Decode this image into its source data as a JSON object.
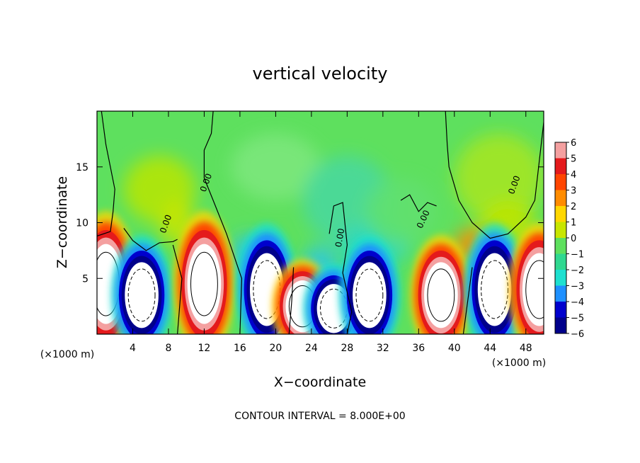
{
  "chart_data": {
    "type": "heatmap",
    "title": "vertical velocity",
    "xlabel": "X−coordinate",
    "ylabel": "Z−coordinate",
    "x_unit": "(×1000 m)",
    "y_unit": "(×1000 m)",
    "xlim": [
      0,
      50
    ],
    "ylim": [
      0,
      20
    ],
    "x_ticks": [
      4,
      8,
      12,
      16,
      20,
      24,
      28,
      32,
      36,
      40,
      44,
      48
    ],
    "y_ticks": [
      5,
      10,
      15
    ],
    "colorbar": {
      "ticks": [
        "6",
        "5",
        "4",
        "3",
        "2",
        "1",
        "0",
        "−1",
        "−2",
        "−3",
        "−4",
        "−5",
        "−6"
      ],
      "range": [
        -6,
        6
      ],
      "colors": [
        "#f4a0a0",
        "#e41a1c",
        "#ff4500",
        "#ff8c00",
        "#ffd700",
        "#c8e600",
        "#5ee05e",
        "#30d890",
        "#1ee0d0",
        "#1e90ff",
        "#0000cd",
        "#00008b",
        "#6a0dad"
      ]
    },
    "contour_label": "0.00",
    "footer": "CONTOUR INTERVAL = 8.000E+00",
    "cells": [
      {
        "x": 1,
        "z": 4.5,
        "w": 6
      },
      {
        "x": 5,
        "z": 3.5,
        "w": -7
      },
      {
        "x": 12,
        "z": 4.5,
        "w": 7
      },
      {
        "x": 19,
        "z": 4,
        "w": -7
      },
      {
        "x": 23,
        "z": 2.5,
        "w": 5
      },
      {
        "x": 26.5,
        "z": 2.3,
        "w": -6
      },
      {
        "x": 30.5,
        "z": 3.5,
        "w": -6
      },
      {
        "x": 38.5,
        "z": 3.5,
        "w": 7
      },
      {
        "x": 44.5,
        "z": 4,
        "w": -7
      },
      {
        "x": 49.5,
        "z": 4,
        "w": 6
      }
    ]
  }
}
